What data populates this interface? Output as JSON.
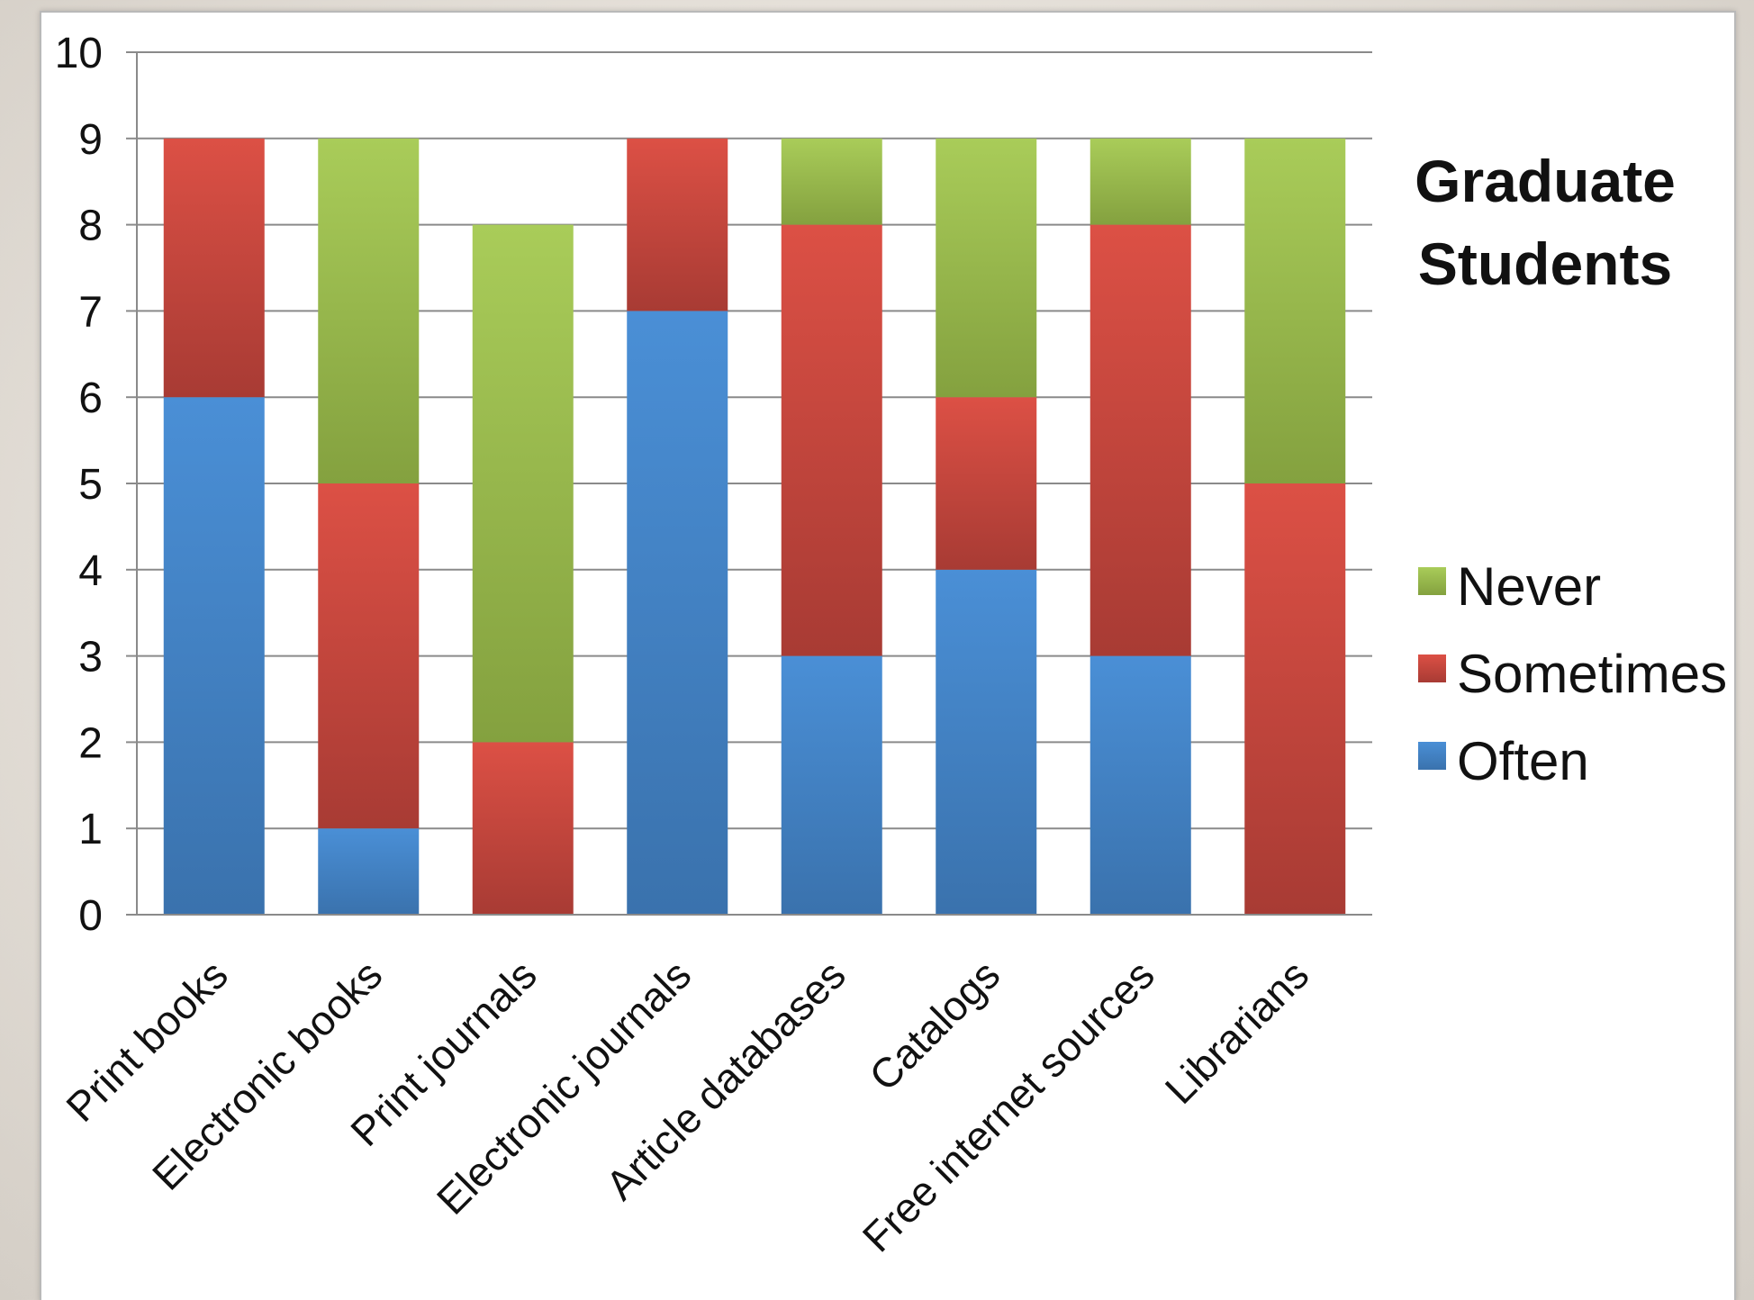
{
  "chart_data": {
    "type": "bar",
    "stacked": true,
    "title": "Graduate Students",
    "title_lines": [
      "Graduate",
      "Students"
    ],
    "xlabel": "",
    "ylabel": "",
    "ylim": [
      0,
      10
    ],
    "yticks": [
      0,
      1,
      2,
      3,
      4,
      5,
      6,
      7,
      8,
      9,
      10
    ],
    "grid": true,
    "legend_position": "right",
    "categories": [
      "Print books",
      "Electronic books",
      "Print journals",
      "Electronic journals",
      "Article databases",
      "Catalogs",
      "Free internet sources",
      "Librarians"
    ],
    "series": [
      {
        "name": "Often",
        "color": "#4a8fd6",
        "color_dark": "#3a72ad",
        "values": [
          6,
          1,
          0,
          7,
          3,
          4,
          3,
          0
        ]
      },
      {
        "name": "Sometimes",
        "color": "#dc5045",
        "color_dark": "#a83b34",
        "values": [
          3,
          4,
          2,
          2,
          5,
          2,
          5,
          5
        ]
      },
      {
        "name": "Never",
        "color": "#a9cc59",
        "color_dark": "#84a13f",
        "values": [
          0,
          4,
          6,
          0,
          1,
          3,
          1,
          4
        ]
      }
    ],
    "legend_order": [
      "Never",
      "Sometimes",
      "Often"
    ]
  }
}
